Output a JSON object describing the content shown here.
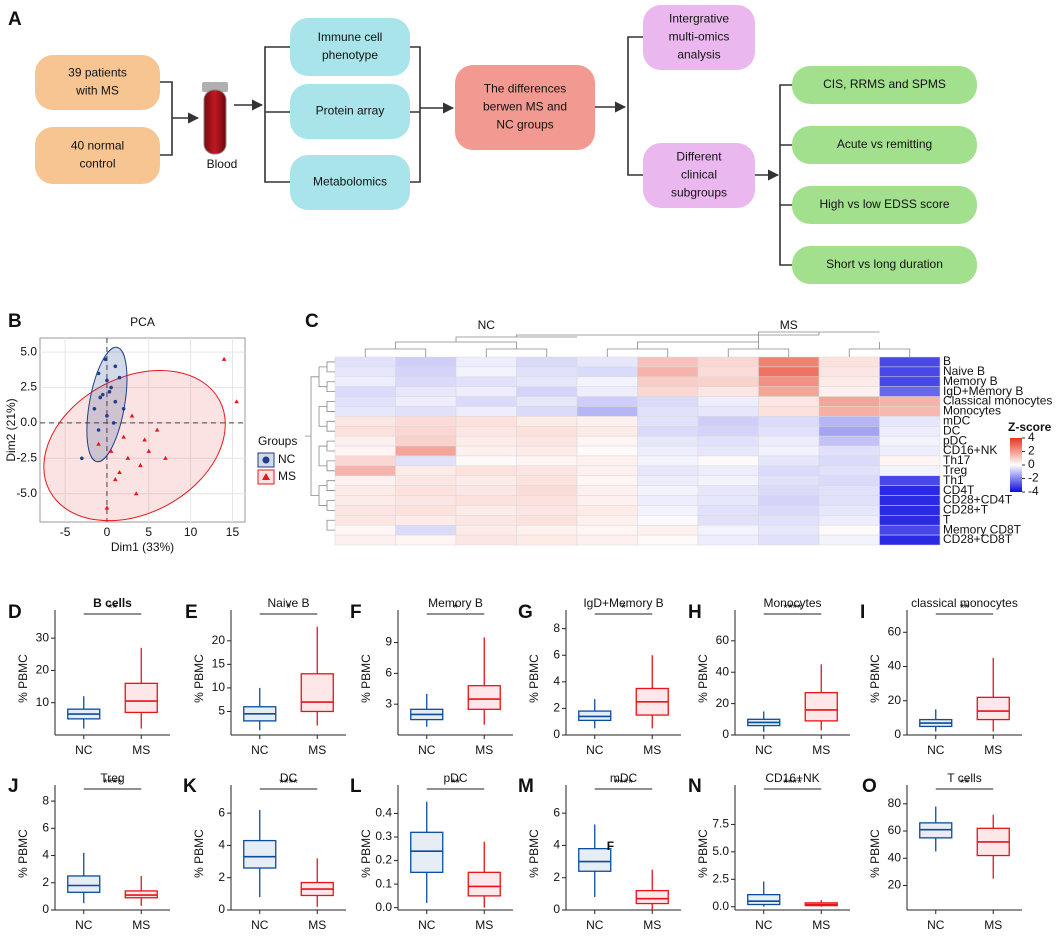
{
  "panel_labels": [
    "A",
    "B",
    "C",
    "D",
    "E",
    "F",
    "G",
    "H",
    "I",
    "J",
    "K",
    "L",
    "M",
    "N",
    "O"
  ],
  "flowchart": {
    "blood_label": "Blood",
    "nodes": [
      {
        "lines": [
          "39 patients",
          "with MS"
        ]
      },
      {
        "lines": [
          "40 normal",
          "control"
        ]
      },
      {
        "lines": [
          "Immune cell",
          "phenotype"
        ]
      },
      {
        "lines": [
          "Protein array"
        ]
      },
      {
        "lines": [
          "Metabolomics"
        ]
      },
      {
        "lines": [
          "The differences",
          "berwen MS and",
          "NC groups"
        ]
      },
      {
        "lines": [
          "Intergrative",
          "multi-omics",
          "analysis"
        ]
      },
      {
        "lines": [
          "Different",
          "clinical",
          "subgroups"
        ]
      },
      {
        "lines": [
          "CIS, RRMS and SPMS"
        ]
      },
      {
        "lines": [
          "Acute vs remitting"
        ]
      },
      {
        "lines": [
          "High vs low EDSS score"
        ]
      },
      {
        "lines": [
          "Short vs long duration"
        ]
      }
    ]
  },
  "chart_data": [
    {
      "type": "scatter",
      "title": "PCA",
      "xlabel": "Dim1 (33%)",
      "ylabel": "Dim2 (21%)",
      "xlim": [
        -8,
        16.5
      ],
      "ylim": [
        -7,
        6
      ],
      "xticks": [
        -5,
        0,
        5,
        10,
        15
      ],
      "yticks": [
        {
          "value": -5,
          "label": "-5.0"
        },
        {
          "value": -2.5,
          "label": "-2.5"
        },
        {
          "value": 0,
          "label": "0.0"
        },
        {
          "value": 2.5,
          "label": "2.5"
        },
        {
          "value": 5,
          "label": "5.0"
        }
      ],
      "grid": true,
      "legend_title": "Groups",
      "series": [
        {
          "name": "NC",
          "color": "#1f3f8a",
          "marker": "circle",
          "x": [
            -1,
            0,
            -0.5,
            0.5,
            1,
            -1.5,
            0,
            1,
            -0.2,
            0.8,
            -1,
            2,
            -3,
            0.3,
            1.5,
            -0.8
          ],
          "y": [
            3.5,
            3,
            2,
            2.5,
            1.5,
            1,
            0.5,
            4,
            4.5,
            0,
            -0.5,
            1,
            -2.5,
            2.2,
            3.2,
            1.8
          ]
        },
        {
          "name": "MS",
          "color": "#e31a1c",
          "marker": "triangle",
          "x": [
            14,
            15.5,
            3,
            2,
            5,
            4,
            1,
            3.5,
            6,
            2.5,
            -1,
            0,
            7,
            1.5,
            4.5,
            0.5
          ],
          "y": [
            4.5,
            1.5,
            0.5,
            -1,
            -2,
            -3,
            -4,
            -5,
            -0.5,
            -2.5,
            -1.5,
            -6,
            -2.5,
            -3.5,
            -1.2,
            -2
          ]
        }
      ]
    },
    {
      "type": "heatmap",
      "column_groups": [
        "NC",
        "MS"
      ],
      "rows": [
        "B",
        "Naive B",
        "Memory B",
        "IgD+Memory B",
        "Classical monocytes",
        "Monocytes",
        "mDC",
        "DC",
        "pDC",
        "CD16+NK",
        "Th17",
        "Treg",
        "Th1",
        "CD4T",
        "CD28+CD4T",
        "CD28+T",
        "T",
        "Memory CD8T",
        "CD28+CD8T"
      ],
      "values": [
        [
          -0.5,
          -0.8,
          -0.3,
          -0.6,
          -0.4,
          1.2,
          0.8,
          2.5,
          0.6,
          -3
        ],
        [
          -0.4,
          -0.7,
          -0.2,
          -0.5,
          -0.6,
          1.5,
          0.7,
          2.8,
          0.5,
          -3
        ],
        [
          -0.3,
          -0.6,
          -0.5,
          -0.4,
          -0.2,
          1.0,
          0.9,
          2.2,
          0.4,
          -3
        ],
        [
          -0.6,
          -0.4,
          -0.3,
          -0.7,
          -0.3,
          0.8,
          0.5,
          1.8,
          0.3,
          -2.5
        ],
        [
          -0.5,
          -0.3,
          -0.6,
          -0.4,
          -0.8,
          -0.6,
          -0.3,
          0.5,
          1.8,
          1.5
        ],
        [
          -0.4,
          -0.5,
          -0.3,
          -0.6,
          -1.2,
          -0.5,
          -0.4,
          0.6,
          1.6,
          1.4
        ],
        [
          0.5,
          0.7,
          0.6,
          0.4,
          0.3,
          -0.5,
          -0.8,
          -0.6,
          -1.2,
          -0.4
        ],
        [
          0.6,
          0.8,
          0.5,
          0.6,
          0.4,
          -0.6,
          -0.7,
          -0.5,
          -1.5,
          -0.3
        ],
        [
          0.3,
          0.9,
          0.4,
          0.5,
          0.2,
          -0.4,
          -0.5,
          -0.3,
          -1.0,
          -0.2
        ],
        [
          0.2,
          1.8,
          0.3,
          0.4,
          0.1,
          -0.3,
          -0.4,
          -0.2,
          -0.5,
          -0.3
        ],
        [
          0.8,
          -0.5,
          0.1,
          0.2,
          0.3,
          -0.2,
          0.1,
          -0.4,
          -0.6,
          0.2
        ],
        [
          1.5,
          0.4,
          0.6,
          0.5,
          0.3,
          -0.4,
          -0.3,
          -0.6,
          -0.5,
          -0.2
        ],
        [
          0.3,
          0.5,
          0.4,
          0.6,
          0.2,
          -0.3,
          -0.2,
          -0.5,
          -0.6,
          -3
        ],
        [
          0.4,
          0.6,
          0.5,
          0.7,
          0.3,
          -0.2,
          -0.4,
          -0.6,
          -0.5,
          -3.5
        ],
        [
          0.4,
          0.5,
          0.6,
          0.6,
          0.3,
          -0.3,
          -0.4,
          -0.7,
          -0.5,
          -3.5
        ],
        [
          0.5,
          0.6,
          0.4,
          0.5,
          0.4,
          -0.2,
          -0.5,
          -0.6,
          -0.4,
          -3.5
        ],
        [
          0.5,
          0.4,
          0.5,
          0.6,
          0.3,
          -0.1,
          -0.5,
          -0.5,
          -0.3,
          -3.5
        ],
        [
          0.2,
          -0.6,
          0.4,
          0.3,
          0.2,
          0.3,
          -0.2,
          -0.4,
          0.1,
          -3
        ],
        [
          0.3,
          0.2,
          0.5,
          0.4,
          0.3,
          0.1,
          -0.3,
          -0.5,
          -0.2,
          -3.5
        ]
      ],
      "zlim": [
        -4,
        4
      ],
      "colors": [
        "#0b0be0",
        "#ffffff",
        "#e8351e"
      ],
      "legend_title": "Z-score",
      "colorbar_ticks": [
        4,
        2,
        0,
        -2,
        -4
      ]
    },
    {
      "type": "box",
      "title": "B cells",
      "title_bold": true,
      "ylabel": "% PBMC",
      "categories": [
        "NC",
        "MS"
      ],
      "significance": "**",
      "ylim": [
        0,
        35
      ],
      "yticks": [
        10,
        20,
        30
      ],
      "boxes": [
        {
          "color": "#0b4c9c",
          "min": 2,
          "q1": 5,
          "median": 6.5,
          "q3": 8,
          "max": 12
        },
        {
          "color": "#e8121a",
          "min": 2,
          "q1": 7,
          "median": 10.5,
          "q3": 16,
          "max": 27
        }
      ]
    },
    {
      "type": "box",
      "title": "Naive B",
      "ylabel": "% PBMC",
      "categories": [
        "NC",
        "MS"
      ],
      "significance": "*",
      "ylim": [
        0,
        24
      ],
      "yticks": [
        5,
        10,
        15,
        20
      ],
      "boxes": [
        {
          "color": "#0b4c9c",
          "min": 1,
          "q1": 3,
          "median": 4.5,
          "q3": 6,
          "max": 10
        },
        {
          "color": "#e8121a",
          "min": 2,
          "q1": 5,
          "median": 7,
          "q3": 13,
          "max": 23
        }
      ]
    },
    {
      "type": "box",
      "title": "Memory B",
      "ylabel": "% PBMC",
      "categories": [
        "NC",
        "MS"
      ],
      "significance": "*",
      "ylim": [
        0,
        11
      ],
      "yticks": [
        3,
        6,
        9
      ],
      "boxes": [
        {
          "color": "#0b4c9c",
          "min": 0.8,
          "q1": 1.5,
          "median": 2,
          "q3": 2.5,
          "max": 4
        },
        {
          "color": "#e8121a",
          "min": 1,
          "q1": 2.5,
          "median": 3.5,
          "q3": 4.8,
          "max": 9.5
        }
      ]
    },
    {
      "type": "box",
      "title": "IgD+Memory B",
      "ylabel": "% PBMC",
      "categories": [
        "NC",
        "MS"
      ],
      "significance": "*",
      "ylim": [
        0,
        8.5
      ],
      "yticks": [
        0,
        2,
        4,
        6,
        8
      ],
      "boxes": [
        {
          "color": "#0b4c9c",
          "min": 0.5,
          "q1": 1.1,
          "median": 1.4,
          "q3": 1.8,
          "max": 2.7
        },
        {
          "color": "#e8121a",
          "min": 0.5,
          "q1": 1.5,
          "median": 2.5,
          "q3": 3.5,
          "max": 6
        }
      ]
    },
    {
      "type": "box",
      "title": "Monocytes",
      "ylabel": "% PBMC",
      "categories": [
        "NC",
        "MS"
      ],
      "significance": "****",
      "ylim": [
        0,
        72
      ],
      "yticks": [
        0,
        20,
        40,
        60
      ],
      "boxes": [
        {
          "color": "#0b4c9c",
          "min": 2,
          "q1": 6,
          "median": 8,
          "q3": 10,
          "max": 15
        },
        {
          "color": "#e8121a",
          "min": 3,
          "q1": 9,
          "median": 16,
          "q3": 27,
          "max": 45
        }
      ]
    },
    {
      "type": "box",
      "title": "classical monocytes",
      "ylabel": "% PBMC",
      "categories": [
        "NC",
        "MS"
      ],
      "significance": "**",
      "ylim": [
        0,
        66
      ],
      "yticks": [
        0,
        20,
        40,
        60
      ],
      "boxes": [
        {
          "color": "#0b4c9c",
          "min": 2,
          "q1": 5,
          "median": 7,
          "q3": 9,
          "max": 15
        },
        {
          "color": "#e8121a",
          "min": 2,
          "q1": 9,
          "median": 14,
          "q3": 22,
          "max": 45
        }
      ]
    },
    {
      "type": "box",
      "title": "Treg",
      "ylabel": "% PBMC",
      "categories": [
        "NC",
        "MS"
      ],
      "significance": "****",
      "ylim": [
        0,
        8.3
      ],
      "yticks": [
        0,
        2,
        4,
        6,
        8
      ],
      "boxes": [
        {
          "color": "#0b4c9c",
          "min": 0.5,
          "q1": 1.3,
          "median": 1.8,
          "q3": 2.5,
          "max": 4.2
        },
        {
          "color": "#e8121a",
          "min": 0.3,
          "q1": 0.9,
          "median": 1.1,
          "q3": 1.4,
          "max": 2.5
        }
      ]
    },
    {
      "type": "box",
      "title": "DC",
      "ylabel": "% PBMC",
      "categories": [
        "NC",
        "MS"
      ],
      "significance": "****",
      "ylim": [
        0,
        7
      ],
      "yticks": [
        0,
        2,
        4,
        6
      ],
      "boxes": [
        {
          "color": "#0b4c9c",
          "min": 0.8,
          "q1": 2.6,
          "median": 3.3,
          "q3": 4.3,
          "max": 6.2
        },
        {
          "color": "#e8121a",
          "min": 0.2,
          "q1": 0.9,
          "median": 1.3,
          "q3": 1.7,
          "max": 3.2
        }
      ]
    },
    {
      "type": "box",
      "title": "pDC",
      "ylabel": "% PBMC",
      "categories": [
        "NC",
        "MS"
      ],
      "significance": "**",
      "ylim": [
        -0.01,
        0.47
      ],
      "yticks": [
        {
          "value": 0,
          "label": "0.0"
        },
        0.1,
        0.2,
        0.3,
        0.4
      ],
      "boxes": [
        {
          "color": "#0b4c9c",
          "min": 0.02,
          "q1": 0.15,
          "median": 0.24,
          "q3": 0.32,
          "max": 0.45
        },
        {
          "color": "#e8121a",
          "min": 0,
          "q1": 0.05,
          "median": 0.09,
          "q3": 0.15,
          "max": 0.28
        }
      ]
    },
    {
      "type": "box",
      "title": "mDC",
      "ylabel": "% PBMC",
      "categories": [
        "NC",
        "MS"
      ],
      "significance": "****",
      "annotation": "F",
      "ylim": [
        0,
        7
      ],
      "yticks": [
        0,
        2,
        4,
        6
      ],
      "boxes": [
        {
          "color": "#0b4c9c",
          "min": 0.8,
          "q1": 2.4,
          "median": 3,
          "q3": 3.8,
          "max": 5.3
        },
        {
          "color": "#e8121a",
          "min": 0,
          "q1": 0.4,
          "median": 0.7,
          "q3": 1.2,
          "max": 2.5
        }
      ]
    },
    {
      "type": "box",
      "title": "CD16+NK",
      "ylabel": "% PBMC",
      "categories": [
        "NC",
        "MS"
      ],
      "significance": "****",
      "ylim": [
        -0.3,
        10
      ],
      "yticks": [
        {
          "value": 0,
          "label": "0.0"
        },
        2.5,
        {
          "value": 5,
          "label": "5.0"
        },
        7.5
      ],
      "boxes": [
        {
          "color": "#0b4c9c",
          "min": 0,
          "q1": 0.2,
          "median": 0.5,
          "q3": 1.1,
          "max": 2.3
        },
        {
          "color": "#e8121a",
          "min": 0,
          "q1": 0.1,
          "median": 0.2,
          "q3": 0.35,
          "max": 0.6
        }
      ]
    },
    {
      "type": "box",
      "title": "T cells",
      "ylabel": "% PBMC",
      "categories": [
        "NC",
        "MS"
      ],
      "significance": "**",
      "ylim": [
        2,
        85
      ],
      "yticks": [
        20,
        40,
        60,
        80
      ],
      "boxes": [
        {
          "color": "#0b4c9c",
          "min": 45,
          "q1": 55,
          "median": 61,
          "q3": 66,
          "max": 78
        },
        {
          "color": "#e8121a",
          "min": 25,
          "q1": 42,
          "median": 52,
          "q3": 62,
          "max": 72
        }
      ]
    }
  ]
}
